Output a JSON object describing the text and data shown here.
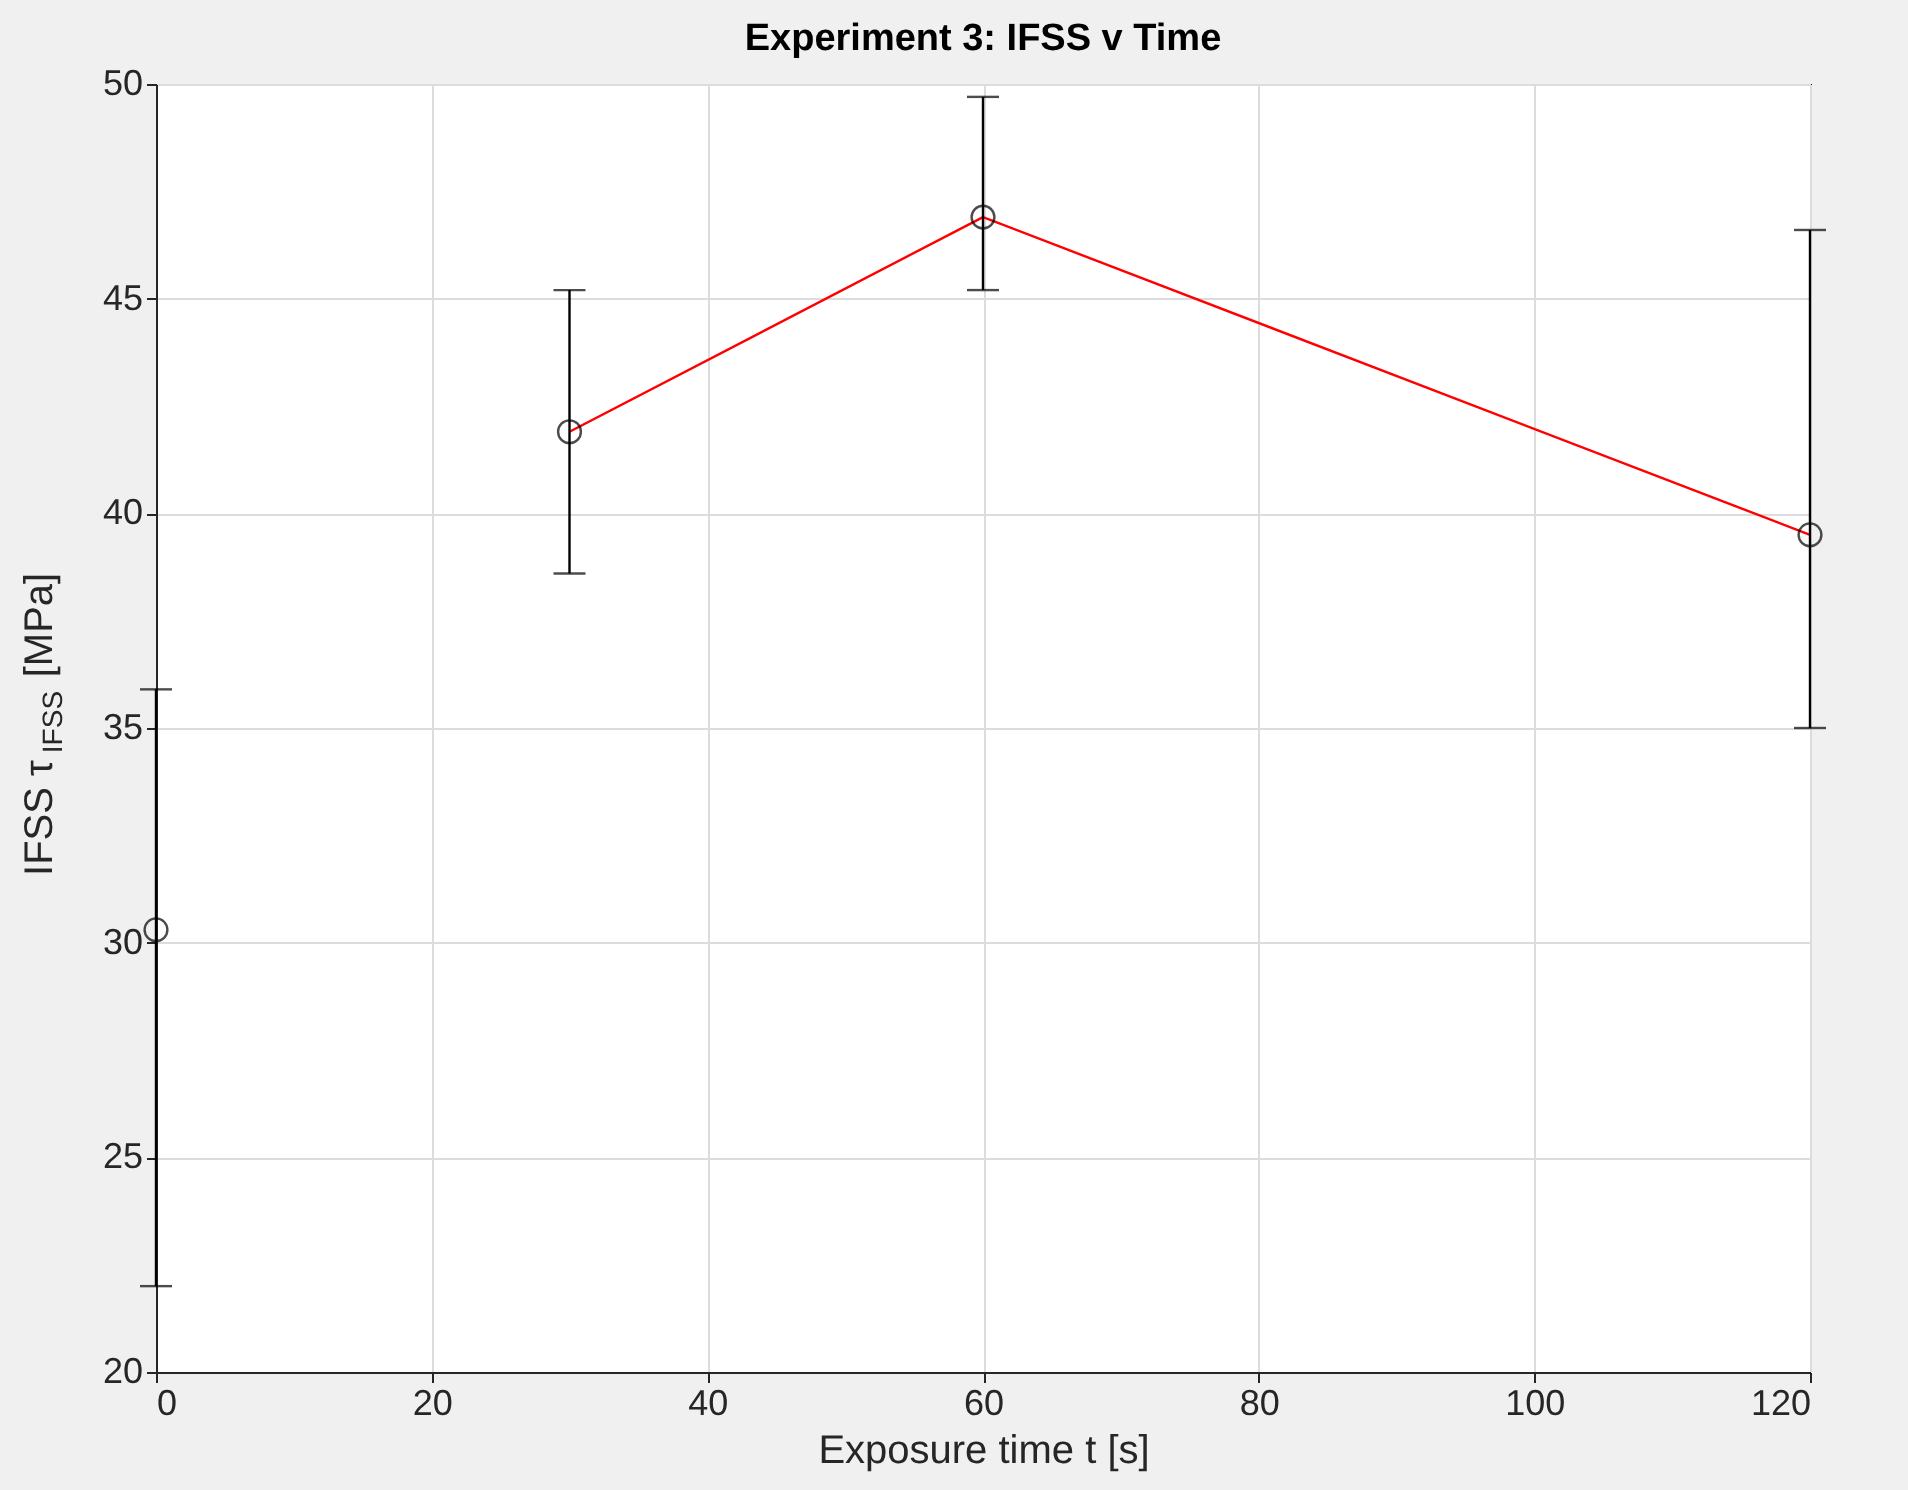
{
  "chart_data": {
    "type": "line",
    "title": "Experiment 3: IFSS v Time",
    "xlabel": "Exposure time t [s]",
    "ylabel": "IFSS τ$_{IFSS}$ [MPa]",
    "xlim": [
      0,
      120
    ],
    "xticks": [
      0,
      20,
      40,
      60,
      80,
      100,
      120
    ],
    "ylim": [
      20,
      50
    ],
    "yticks": [
      20,
      25,
      30,
      35,
      40,
      45,
      50
    ],
    "grid": true,
    "marker": "circle",
    "series": [
      {
        "type": "scatter",
        "color": "#000000",
        "x": [
          0
        ],
        "values": [
          30.3
        ],
        "errors": [
          [
            22.0,
            35.9
          ]
        ]
      },
      {
        "color": "#ff0000",
        "line_style": "solid",
        "x": [
          30,
          60,
          120
        ],
        "values": [
          41.9,
          46.9,
          39.5
        ],
        "errors": [
          [
            38.6,
            45.2
          ],
          [
            45.2,
            49.7
          ],
          [
            35.0,
            46.6
          ]
        ]
      }
    ]
  }
}
